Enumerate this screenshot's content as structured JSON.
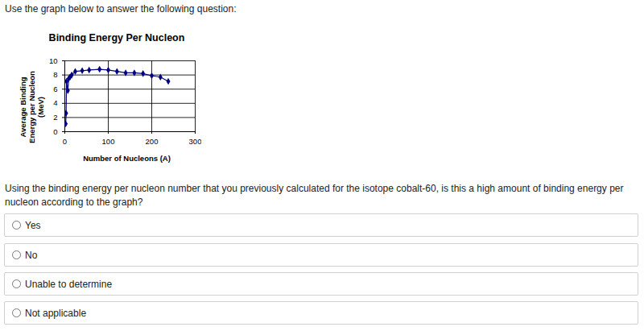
{
  "intro": "Use the graph below to answer the following question:",
  "chart_data": {
    "type": "line",
    "title": "Binding Energy Per Nucleon",
    "x_label": "Number of Nucleons (A)",
    "y_label": "Average Binding Energy per Nucleon (MeV)",
    "x": [
      2,
      3,
      4,
      7,
      9,
      12,
      16,
      24,
      40,
      56,
      80,
      100,
      120,
      140,
      160,
      180,
      200,
      220,
      238
    ],
    "values": [
      1.1,
      2.6,
      7.1,
      5.8,
      7.5,
      7.7,
      8.0,
      8.5,
      8.6,
      8.7,
      8.8,
      8.7,
      8.5,
      8.3,
      8.3,
      8.2,
      7.9,
      7.7,
      7.1
    ],
    "color": "#000080",
    "marker": "diamond",
    "xlim": [
      0,
      300
    ],
    "xticks": [
      0,
      100,
      200,
      300
    ],
    "ylim": [
      0,
      10
    ],
    "yticks": [
      0,
      2,
      4,
      6,
      8,
      10
    ],
    "grid": true
  },
  "question": "Using the binding energy per nucleon number that you previously calculated for the isotope cobalt-60, is this a high amount of binding energy per nucleon according to the graph?",
  "options": [
    "Yes",
    "No",
    "Unable to determine",
    "Not applicable"
  ]
}
